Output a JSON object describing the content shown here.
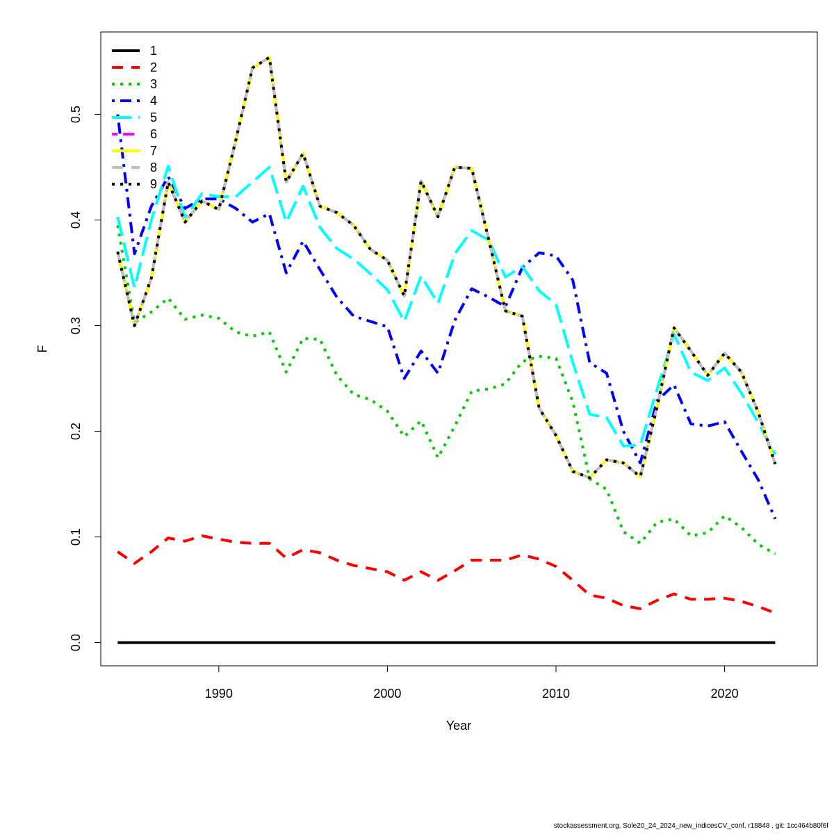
{
  "footer": "stockassessment.org, Sole20_24_2024_new_indicesCV_conf, r18848 , git: 1cc464b80f6f",
  "chart_data": {
    "type": "line",
    "xlabel": "Year",
    "ylabel": "F",
    "xlim": [
      1983,
      2025.5
    ],
    "ylim": [
      -0.022,
      0.578
    ],
    "x_ticks": [
      1990,
      2000,
      2010,
      2020
    ],
    "y_ticks": [
      0.0,
      0.1,
      0.2,
      0.3,
      0.4,
      0.5
    ],
    "y_tick_labels": [
      "0.0",
      "0.1",
      "0.2",
      "0.3",
      "0.4",
      "0.5"
    ],
    "grid": false,
    "legend_position": "top-left",
    "x": [
      1984,
      1985,
      1986,
      1987,
      1988,
      1989,
      1990,
      1991,
      1992,
      1993,
      1994,
      1995,
      1996,
      1997,
      1998,
      1999,
      2000,
      2001,
      2002,
      2003,
      2004,
      2005,
      2006,
      2007,
      2008,
      2009,
      2010,
      2011,
      2012,
      2013,
      2014,
      2015,
      2016,
      2017,
      2018,
      2019,
      2020,
      2021,
      2022,
      2023
    ],
    "series": [
      {
        "name": "1",
        "color": "#000000",
        "dash": "solid",
        "values": [
          0,
          0,
          0,
          0,
          0,
          0,
          0,
          0,
          0,
          0,
          0,
          0,
          0,
          0,
          0,
          0,
          0,
          0,
          0,
          0,
          0,
          0,
          0,
          0,
          0,
          0,
          0,
          0,
          0,
          0,
          0,
          0,
          0,
          0,
          0,
          0,
          0,
          0,
          0,
          0
        ]
      },
      {
        "name": "2",
        "color": "#ff0000",
        "dash": "dashed",
        "values": [
          0.086,
          0.075,
          0.086,
          0.099,
          0.096,
          0.101,
          0.098,
          0.095,
          0.094,
          0.094,
          0.08,
          0.088,
          0.085,
          0.078,
          0.073,
          0.07,
          0.067,
          0.059,
          0.067,
          0.059,
          0.068,
          0.078,
          0.078,
          0.078,
          0.083,
          0.079,
          0.072,
          0.059,
          0.045,
          0.042,
          0.035,
          0.032,
          0.04,
          0.046,
          0.041,
          0.041,
          0.042,
          0.039,
          0.034,
          0.028
        ]
      },
      {
        "name": "3",
        "color": "#00cd00",
        "dash": "dotted",
        "values": [
          0.395,
          0.303,
          0.313,
          0.326,
          0.306,
          0.31,
          0.307,
          0.294,
          0.29,
          0.294,
          0.256,
          0.288,
          0.287,
          0.253,
          0.235,
          0.23,
          0.219,
          0.195,
          0.21,
          0.175,
          0.205,
          0.238,
          0.24,
          0.245,
          0.266,
          0.271,
          0.269,
          0.228,
          0.155,
          0.145,
          0.105,
          0.094,
          0.114,
          0.117,
          0.101,
          0.104,
          0.12,
          0.109,
          0.093,
          0.084
        ]
      },
      {
        "name": "4",
        "color": "#0000ff",
        "dash": "dotdash",
        "values": [
          0.5,
          0.368,
          0.413,
          0.441,
          0.411,
          0.42,
          0.42,
          0.411,
          0.398,
          0.406,
          0.35,
          0.38,
          0.353,
          0.327,
          0.309,
          0.304,
          0.299,
          0.25,
          0.276,
          0.255,
          0.305,
          0.335,
          0.327,
          0.318,
          0.355,
          0.369,
          0.366,
          0.343,
          0.265,
          0.255,
          0.2,
          0.17,
          0.229,
          0.244,
          0.207,
          0.205,
          0.209,
          0.181,
          0.154,
          0.117
        ]
      },
      {
        "name": "5",
        "color": "#00ffff",
        "dash": "longdash",
        "values": [
          0.403,
          0.336,
          0.4,
          0.451,
          0.402,
          0.425,
          0.422,
          0.422,
          0.436,
          0.45,
          0.398,
          0.432,
          0.393,
          0.373,
          0.363,
          0.349,
          0.334,
          0.304,
          0.347,
          0.321,
          0.368,
          0.39,
          0.381,
          0.346,
          0.356,
          0.333,
          0.32,
          0.265,
          0.216,
          0.213,
          0.186,
          0.187,
          0.24,
          0.292,
          0.256,
          0.248,
          0.26,
          0.236,
          0.208,
          0.178
        ]
      },
      {
        "name": "6",
        "color": "#ff00ff",
        "dash": "twodash",
        "values": [
          0.37,
          0.3,
          0.345,
          0.436,
          0.398,
          0.418,
          0.41,
          0.475,
          0.544,
          0.554,
          0.436,
          0.463,
          0.413,
          0.407,
          0.395,
          0.372,
          0.362,
          0.328,
          0.437,
          0.403,
          0.45,
          0.449,
          0.382,
          0.314,
          0.309,
          0.222,
          0.196,
          0.162,
          0.156,
          0.173,
          0.17,
          0.157,
          0.223,
          0.298,
          0.276,
          0.253,
          0.274,
          0.256,
          0.218,
          0.169
        ]
      },
      {
        "name": "7",
        "color": "#ffff00",
        "dash": "solid",
        "values": [
          0.37,
          0.3,
          0.345,
          0.436,
          0.398,
          0.418,
          0.41,
          0.475,
          0.544,
          0.554,
          0.436,
          0.463,
          0.413,
          0.407,
          0.395,
          0.372,
          0.362,
          0.328,
          0.437,
          0.403,
          0.45,
          0.449,
          0.382,
          0.314,
          0.309,
          0.222,
          0.196,
          0.162,
          0.156,
          0.173,
          0.17,
          0.157,
          0.223,
          0.298,
          0.276,
          0.253,
          0.274,
          0.256,
          0.218,
          0.169
        ]
      },
      {
        "name": "8",
        "color": "#bebebe",
        "dash": "dashed",
        "values": [
          0.37,
          0.3,
          0.345,
          0.436,
          0.398,
          0.418,
          0.41,
          0.475,
          0.544,
          0.554,
          0.436,
          0.463,
          0.413,
          0.407,
          0.395,
          0.372,
          0.362,
          0.328,
          0.437,
          0.403,
          0.45,
          0.449,
          0.382,
          0.314,
          0.309,
          0.222,
          0.196,
          0.162,
          0.156,
          0.173,
          0.17,
          0.157,
          0.223,
          0.298,
          0.276,
          0.253,
          0.274,
          0.256,
          0.218,
          0.169
        ]
      },
      {
        "name": "9",
        "color": "#000000",
        "dash": "dotted",
        "values": [
          0.37,
          0.3,
          0.345,
          0.436,
          0.398,
          0.418,
          0.41,
          0.475,
          0.544,
          0.554,
          0.436,
          0.463,
          0.413,
          0.407,
          0.395,
          0.372,
          0.362,
          0.328,
          0.437,
          0.403,
          0.45,
          0.449,
          0.382,
          0.314,
          0.309,
          0.222,
          0.196,
          0.162,
          0.156,
          0.173,
          0.17,
          0.157,
          0.223,
          0.298,
          0.276,
          0.253,
          0.274,
          0.256,
          0.218,
          0.169
        ]
      }
    ]
  }
}
